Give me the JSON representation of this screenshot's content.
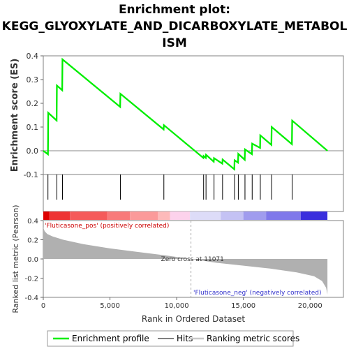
{
  "title_lines": [
    "Enrichment plot:",
    "KEGG_GLYOXYLATE_AND_DICARBOXYLATE_METABOL",
    "ISM"
  ],
  "chart_data": {
    "type": "line",
    "x_axis": {
      "label": "Rank in Ordered Dataset",
      "range": [
        0,
        22500
      ],
      "ticks": [
        0,
        5000,
        10000,
        15000,
        20000
      ],
      "tick_labels": [
        "0",
        "5,000",
        "10,000",
        "15,000",
        "20,000"
      ]
    },
    "es_panel": {
      "ylabel": "Enrichment score (ES)",
      "ylim": [
        -0.1,
        0.4
      ],
      "ticks": [
        -0.1,
        0.0,
        0.1,
        0.2,
        0.3,
        0.4
      ],
      "tick_labels": [
        "-0.1",
        "0.0",
        "0.1",
        "0.2",
        "0.3",
        "0.4"
      ],
      "series": {
        "name": "Enrichment profile",
        "color": "#00ee00",
        "points": [
          [
            0,
            0.0
          ],
          [
            350,
            -0.015
          ],
          [
            370,
            0.16
          ],
          [
            1000,
            0.128
          ],
          [
            1020,
            0.275
          ],
          [
            1420,
            0.255
          ],
          [
            1440,
            0.385
          ],
          [
            5760,
            0.185
          ],
          [
            5780,
            0.24
          ],
          [
            9020,
            0.09
          ],
          [
            9040,
            0.108
          ],
          [
            12000,
            -0.03
          ],
          [
            12020,
            -0.022
          ],
          [
            12180,
            -0.03
          ],
          [
            12200,
            -0.017
          ],
          [
            12780,
            -0.046
          ],
          [
            12800,
            -0.031
          ],
          [
            13420,
            -0.054
          ],
          [
            13440,
            -0.037
          ],
          [
            14320,
            -0.078
          ],
          [
            14340,
            -0.04
          ],
          [
            14600,
            -0.05
          ],
          [
            14620,
            -0.013
          ],
          [
            15100,
            -0.038
          ],
          [
            15120,
            0.006
          ],
          [
            15640,
            -0.014
          ],
          [
            15660,
            0.03
          ],
          [
            16250,
            0.012
          ],
          [
            16270,
            0.065
          ],
          [
            17100,
            0.025
          ],
          [
            17120,
            0.1
          ],
          [
            18640,
            0.028
          ],
          [
            18660,
            0.127
          ],
          [
            21300,
            0.0
          ]
        ]
      },
      "baseline": 0.0
    },
    "hits": {
      "name": "Hits",
      "positions": [
        350,
        1020,
        1440,
        5780,
        9040,
        12020,
        12200,
        12800,
        13440,
        14340,
        14620,
        15120,
        15660,
        16270,
        17120,
        18660
      ]
    },
    "metric_panel": {
      "ylabel": "Ranked list metric (Pearson)",
      "ylim": [
        -0.4,
        0.4
      ],
      "ticks": [
        -0.4,
        -0.2,
        0.0,
        0.2,
        0.4
      ],
      "tick_labels": [
        "-0.4",
        "-0.2",
        "0.0",
        "0.2",
        "0.4"
      ],
      "series": {
        "name": "Ranking metric scores",
        "color": "#b0b0b0",
        "points": [
          [
            0,
            0.33
          ],
          [
            100,
            0.29
          ],
          [
            300,
            0.26
          ],
          [
            700,
            0.235
          ],
          [
            1500,
            0.2
          ],
          [
            3000,
            0.155
          ],
          [
            5000,
            0.11
          ],
          [
            7000,
            0.075
          ],
          [
            9000,
            0.04
          ],
          [
            11071,
            0.0
          ],
          [
            13000,
            -0.04
          ],
          [
            15000,
            -0.07
          ],
          [
            17000,
            -0.1
          ],
          [
            19000,
            -0.14
          ],
          [
            20300,
            -0.18
          ],
          [
            20900,
            -0.23
          ],
          [
            21200,
            -0.3
          ],
          [
            21300,
            -0.37
          ]
        ]
      },
      "zero_cross": {
        "rank": 11071,
        "label": "Zero cross at 11071"
      },
      "pos_label": "'Fluticasone_pos' (positively correlated)",
      "neg_label": "'Fluticasone_neg' (negatively correlated)"
    },
    "color_bar": {
      "segments": [
        [
          0,
          450,
          "#dd0000"
        ],
        [
          450,
          2000,
          "#ee3333"
        ],
        [
          2000,
          4800,
          "#f55a5a"
        ],
        [
          4800,
          6500,
          "#f87a7a"
        ],
        [
          6500,
          8600,
          "#fb9a9a"
        ],
        [
          8600,
          9500,
          "#fdbaba"
        ],
        [
          9500,
          11000,
          "#fcd2ec"
        ],
        [
          11000,
          13300,
          "#dddcf8"
        ],
        [
          13300,
          15000,
          "#c4c2f4"
        ],
        [
          15000,
          16700,
          "#a09cee"
        ],
        [
          16700,
          19300,
          "#7f78ea"
        ],
        [
          19300,
          21300,
          "#3a2fdd"
        ]
      ]
    },
    "legend": {
      "placement": "bottom",
      "items": [
        {
          "label": "Enrichment profile",
          "color": "#00ee00"
        },
        {
          "label": "Hits",
          "color": "#000000"
        },
        {
          "label": "Ranking metric scores",
          "color": "#c8c8c8"
        }
      ]
    }
  }
}
